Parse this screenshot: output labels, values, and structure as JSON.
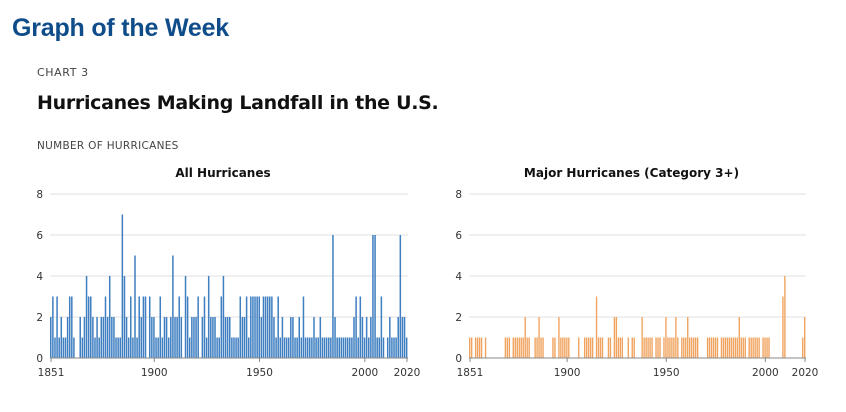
{
  "header": {
    "title": "Graph of the Week"
  },
  "chart_meta": {
    "kicker": "CHART 3",
    "title": "Hurricanes Making Landfall in the U.S.",
    "ylabel": "NUMBER OF HURRICANES"
  },
  "colors": {
    "header": "#0f4c8a",
    "all_bars": "#3f7fc1",
    "major_bars": "#f0a35e",
    "grid": "#e0e0e0"
  },
  "chart_data": [
    {
      "type": "bar",
      "title": "All Hurricanes",
      "xlim": [
        1851,
        2020
      ],
      "ylim": [
        0,
        8
      ],
      "yticks": [
        0,
        2,
        4,
        6,
        8
      ],
      "xticks": [
        "1851",
        "1900",
        "1950",
        "2000",
        "2020"
      ],
      "grid": true,
      "x": [
        1851,
        1852,
        1853,
        1854,
        1855,
        1856,
        1857,
        1858,
        1859,
        1860,
        1861,
        1862,
        1863,
        1864,
        1865,
        1866,
        1867,
        1868,
        1869,
        1870,
        1871,
        1872,
        1873,
        1874,
        1875,
        1876,
        1877,
        1878,
        1879,
        1880,
        1881,
        1882,
        1883,
        1884,
        1885,
        1886,
        1887,
        1888,
        1889,
        1890,
        1891,
        1892,
        1893,
        1894,
        1895,
        1896,
        1897,
        1898,
        1899,
        1900,
        1901,
        1902,
        1903,
        1904,
        1905,
        1906,
        1907,
        1908,
        1909,
        1910,
        1911,
        1912,
        1913,
        1914,
        1915,
        1916,
        1917,
        1918,
        1919,
        1920,
        1921,
        1922,
        1923,
        1924,
        1925,
        1926,
        1927,
        1928,
        1929,
        1930,
        1931,
        1932,
        1933,
        1934,
        1935,
        1936,
        1937,
        1938,
        1939,
        1940,
        1941,
        1942,
        1943,
        1944,
        1945,
        1946,
        1947,
        1948,
        1949,
        1950,
        1951,
        1952,
        1953,
        1954,
        1955,
        1956,
        1957,
        1958,
        1959,
        1960,
        1961,
        1962,
        1963,
        1964,
        1965,
        1966,
        1967,
        1968,
        1969,
        1970,
        1971,
        1972,
        1973,
        1974,
        1975,
        1976,
        1977,
        1978,
        1979,
        1980,
        1981,
        1982,
        1983,
        1984,
        1985,
        1986,
        1987,
        1988,
        1989,
        1990,
        1991,
        1992,
        1993,
        1994,
        1995,
        1996,
        1997,
        1998,
        1999,
        2000,
        2001,
        2002,
        2003,
        2004,
        2005,
        2006,
        2007,
        2008,
        2009,
        2010,
        2011,
        2012,
        2013,
        2014,
        2015,
        2016,
        2017,
        2018,
        2019,
        2020
      ],
      "values": [
        2,
        3,
        1,
        3,
        1,
        2,
        1,
        1,
        2,
        3,
        3,
        1,
        0,
        0,
        2,
        1,
        2,
        4,
        3,
        3,
        2,
        1,
        2,
        1,
        2,
        2,
        3,
        2,
        4,
        2,
        2,
        1,
        1,
        1,
        7,
        4,
        2,
        1,
        3,
        1,
        5,
        1,
        3,
        2,
        3,
        3,
        0,
        3,
        2,
        2,
        1,
        1,
        3,
        1,
        2,
        2,
        1,
        2,
        5,
        2,
        2,
        3,
        2,
        0,
        4,
        3,
        1,
        2,
        2,
        2,
        3,
        0,
        2,
        3,
        1,
        4,
        2,
        2,
        2,
        1,
        1,
        3,
        4,
        2,
        2,
        2,
        1,
        1,
        1,
        1,
        3,
        2,
        2,
        3,
        1,
        3,
        3,
        3,
        3,
        3,
        2,
        3,
        3,
        3,
        3,
        3,
        2,
        1,
        3,
        1,
        2,
        1,
        1,
        1,
        2,
        2,
        1,
        1,
        2,
        1,
        3,
        1,
        1,
        1,
        1,
        2,
        1,
        1,
        2,
        1,
        1,
        1,
        1,
        1,
        6,
        2,
        1,
        1,
        1,
        1,
        1,
        1,
        1,
        1,
        2,
        3,
        1,
        3,
        2,
        1,
        2,
        1,
        2,
        6,
        6,
        1,
        1,
        3,
        1,
        0,
        1,
        2,
        1,
        1,
        1,
        2,
        6,
        2,
        2,
        1
      ]
    },
    {
      "type": "bar",
      "title": "Major Hurricanes (Category 3+)",
      "xlim": [
        1851,
        2020
      ],
      "ylim": [
        0,
        8
      ],
      "yticks": [
        0,
        2,
        4,
        6,
        8
      ],
      "xticks": [
        "1851",
        "1900",
        "1950",
        "2000",
        "2020"
      ],
      "grid": true,
      "x": [
        1851,
        1852,
        1853,
        1854,
        1855,
        1856,
        1857,
        1858,
        1859,
        1860,
        1861,
        1862,
        1863,
        1864,
        1865,
        1866,
        1867,
        1868,
        1869,
        1870,
        1871,
        1872,
        1873,
        1874,
        1875,
        1876,
        1877,
        1878,
        1879,
        1880,
        1881,
        1882,
        1883,
        1884,
        1885,
        1886,
        1887,
        1888,
        1889,
        1890,
        1891,
        1892,
        1893,
        1894,
        1895,
        1896,
        1897,
        1898,
        1899,
        1900,
        1901,
        1902,
        1903,
        1904,
        1905,
        1906,
        1907,
        1908,
        1909,
        1910,
        1911,
        1912,
        1913,
        1914,
        1915,
        1916,
        1917,
        1918,
        1919,
        1920,
        1921,
        1922,
        1923,
        1924,
        1925,
        1926,
        1927,
        1928,
        1929,
        1930,
        1931,
        1932,
        1933,
        1934,
        1935,
        1936,
        1937,
        1938,
        1939,
        1940,
        1941,
        1942,
        1943,
        1944,
        1945,
        1946,
        1947,
        1948,
        1949,
        1950,
        1951,
        1952,
        1953,
        1954,
        1955,
        1956,
        1957,
        1958,
        1959,
        1960,
        1961,
        1962,
        1963,
        1964,
        1965,
        1966,
        1967,
        1968,
        1969,
        1970,
        1971,
        1972,
        1973,
        1974,
        1975,
        1976,
        1977,
        1978,
        1979,
        1980,
        1981,
        1982,
        1983,
        1984,
        1985,
        1986,
        1987,
        1988,
        1989,
        1990,
        1991,
        1992,
        1993,
        1994,
        1995,
        1996,
        1997,
        1998,
        1999,
        2000,
        2001,
        2002,
        2003,
        2004,
        2005,
        2006,
        2007,
        2008,
        2009,
        2010,
        2011,
        2012,
        2013,
        2014,
        2015,
        2016,
        2017,
        2018,
        2019,
        2020
      ],
      "values": [
        1,
        1,
        0,
        1,
        1,
        1,
        1,
        0,
        1,
        0,
        0,
        0,
        0,
        0,
        0,
        0,
        0,
        0,
        1,
        1,
        1,
        0,
        1,
        1,
        1,
        1,
        1,
        1,
        2,
        1,
        1,
        0,
        0,
        1,
        1,
        2,
        1,
        1,
        0,
        0,
        0,
        0,
        1,
        1,
        0,
        2,
        1,
        1,
        1,
        1,
        1,
        0,
        0,
        0,
        0,
        1,
        0,
        0,
        1,
        1,
        1,
        1,
        1,
        0,
        3,
        1,
        1,
        1,
        0,
        0,
        1,
        1,
        0,
        2,
        2,
        1,
        1,
        1,
        0,
        0,
        1,
        0,
        1,
        1,
        0,
        0,
        0,
        2,
        1,
        1,
        1,
        1,
        1,
        0,
        1,
        1,
        1,
        0,
        1,
        2,
        1,
        1,
        1,
        1,
        2,
        1,
        0,
        1,
        1,
        1,
        2,
        1,
        1,
        1,
        1,
        1,
        0,
        0,
        0,
        0,
        1,
        1,
        1,
        1,
        1,
        1,
        0,
        1,
        1,
        1,
        1,
        1,
        1,
        1,
        1,
        1,
        2,
        1,
        1,
        1,
        0,
        1,
        1,
        1,
        1,
        1,
        1,
        0,
        1,
        1,
        1,
        1,
        0,
        0,
        0,
        0,
        0,
        0,
        3,
        4,
        0,
        0,
        0,
        0,
        0,
        0,
        0,
        0,
        1,
        2
      ]
    }
  ]
}
